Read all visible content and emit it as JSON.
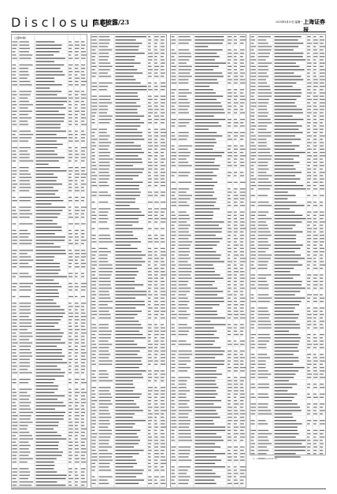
{
  "masthead": {
    "brand": "Disclosure",
    "section": "信息披露",
    "page_number": "/23",
    "date": "2025年9月15日 星期一",
    "newspaper": "上海证券报"
  },
  "table_header": "（上接B2版）",
  "columns": [
    {
      "name": "column-1"
    },
    {
      "name": "column-2"
    },
    {
      "name": "column-3"
    },
    {
      "name": "column-4"
    }
  ],
  "footnote": {
    "text": "注：上述数据截至2025年9月12日。"
  }
}
